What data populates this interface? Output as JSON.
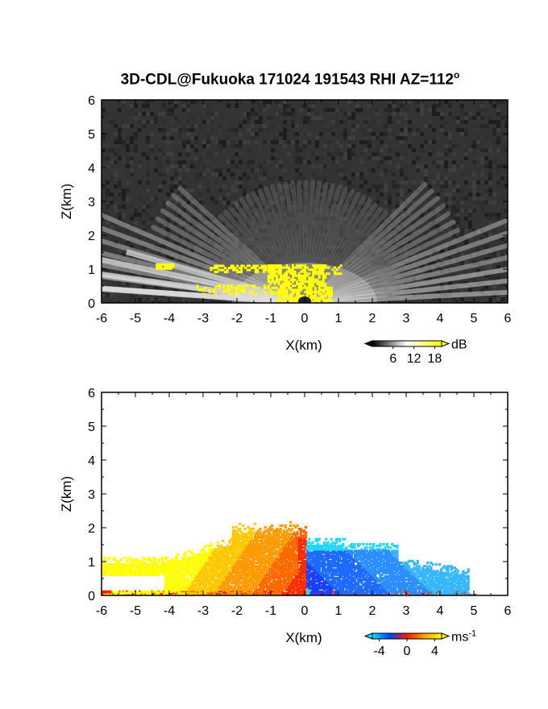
{
  "title": {
    "prefix": "3D-CDL@Fukuoka 171024 191543 RHI AZ=112",
    "degree": "o"
  },
  "chart_data": [
    {
      "type": "heatmap",
      "title": "3D-CDL@Fukuoka 171024 191543 RHI AZ=112°",
      "xlabel": "X(km)",
      "ylabel": "Z(km)",
      "xlim": [
        -6,
        6
      ],
      "ylim": [
        0,
        6
      ],
      "x_ticks": [
        "-6",
        "-5",
        "-4",
        "-3",
        "-2",
        "-1",
        "0",
        "1",
        "2",
        "3",
        "4",
        "5",
        "6"
      ],
      "y_ticks": [
        "0",
        "1",
        "2",
        "3",
        "4",
        "5",
        "6"
      ],
      "colorbar": {
        "unit": "dB",
        "ticks": [
          "6",
          "12",
          "18"
        ],
        "range": [
          0,
          20
        ],
        "colors": [
          "#000000",
          "#ffffff",
          "#ffff00"
        ]
      },
      "background": "#333333",
      "features": "grayscale SNR fan of beams radiating from radar at origin, brighter near ground; saturated (yellow) region above ~18 dB from x=-4.4 to x=0.8 km, z=0 to 1.2 km"
    },
    {
      "type": "heatmap",
      "xlabel": "X(km)",
      "ylabel": "Z(km)",
      "xlim": [
        -6,
        6
      ],
      "ylim": [
        0,
        6
      ],
      "x_ticks": [
        "-6",
        "-5",
        "-4",
        "-3",
        "-2",
        "-1",
        "0",
        "1",
        "2",
        "3",
        "4",
        "5",
        "6"
      ],
      "y_ticks": [
        "0",
        "1",
        "2",
        "3",
        "4",
        "5",
        "6"
      ],
      "colorbar": {
        "unit": "ms",
        "unit_exp": "-1",
        "ticks": [
          "-4",
          "0",
          "4"
        ],
        "range": [
          -5,
          5
        ],
        "colors": [
          "#00e5ff",
          "#0040ff",
          "#ff1a00",
          "#ffa000",
          "#ffff00"
        ]
      },
      "features": "Doppler velocity: positive (red to yellow, 0 to +5 m/s) for x<0 up to ~2.2 km altitude; negative (blue, -1 to -4 m/s) for x>0 up to ~1.7 km altitude extending to ~4.8 km"
    }
  ]
}
